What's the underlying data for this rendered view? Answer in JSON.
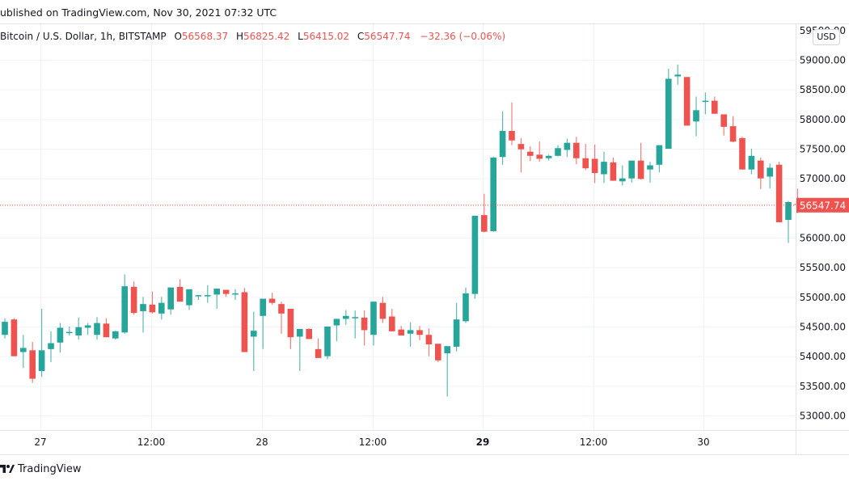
{
  "header": {
    "published": "ublished on TradingView.com, Nov 30, 2021 07:32 UTC"
  },
  "legend": {
    "symbol": "Bitcoin / U.S. Dollar, 1h, BITSTAMP",
    "open_label": "O",
    "open": "56568.37",
    "high_label": "H",
    "high": "56825.42",
    "low_label": "L",
    "low": "56415.02",
    "close_label": "C",
    "close": "56547.74",
    "change": "−32.36 (−0.06%)"
  },
  "price_axis": {
    "currency": "USD",
    "last_price_label": "56547.74",
    "ticks": [
      "59500.00",
      "59000.00",
      "58500.00",
      "58000.00",
      "57500.00",
      "57000.00",
      "56500.00",
      "56000.00",
      "55500.00",
      "55000.00",
      "54500.00",
      "54000.00",
      "53500.00",
      "53000.00"
    ]
  },
  "footer": {
    "brand": "TradingView"
  },
  "colors": {
    "up": "#26a69a",
    "down": "#ef5350",
    "grid": "#f0f3fa",
    "axis_text": "#131722",
    "last_price": "#ef5350"
  },
  "chart_data": {
    "type": "candlestick",
    "title": "Bitcoin / U.S. Dollar, 1h, BITSTAMP",
    "xlabel": "",
    "ylabel": "USD",
    "ylim": [
      52750,
      59550
    ],
    "y_ticks": [
      53000,
      53500,
      54000,
      54500,
      55000,
      55500,
      56000,
      56500,
      57000,
      57500,
      58000,
      58500,
      59000,
      59500
    ],
    "x_ticks": [
      {
        "label": "27",
        "x": 50,
        "bold": false
      },
      {
        "label": "12:00",
        "x": 187,
        "bold": false
      },
      {
        "label": "28",
        "x": 324,
        "bold": false
      },
      {
        "label": "12:00",
        "x": 461,
        "bold": false
      },
      {
        "label": "29",
        "x": 597,
        "bold": true
      },
      {
        "label": "12:00",
        "x": 734,
        "bold": false
      },
      {
        "label": "30",
        "x": 870,
        "bold": false
      }
    ],
    "grid": true,
    "last_price": 56547.74,
    "candle_spacing_px": 11.4,
    "first_candle_x": 6,
    "candles_ohlc": [
      [
        54360,
        54640,
        54300,
        54580
      ],
      [
        54620,
        54640,
        54000,
        54000
      ],
      [
        54070,
        54360,
        53800,
        54140
      ],
      [
        54100,
        54240,
        53550,
        53620
      ],
      [
        53750,
        54800,
        53650,
        54100
      ],
      [
        54120,
        54420,
        53900,
        54220
      ],
      [
        54230,
        54560,
        54060,
        54480
      ],
      [
        54400,
        54500,
        54350,
        54410
      ],
      [
        54350,
        54650,
        54280,
        54490
      ],
      [
        54480,
        54560,
        54360,
        54520
      ],
      [
        54360,
        54660,
        54280,
        54560
      ],
      [
        54550,
        54640,
        54320,
        54320
      ],
      [
        54300,
        54430,
        54280,
        54420
      ],
      [
        54400,
        55380,
        54380,
        55180
      ],
      [
        55170,
        55260,
        54700,
        54730
      ],
      [
        54760,
        55000,
        54400,
        54880
      ],
      [
        54870,
        55090,
        54720,
        54740
      ],
      [
        54720,
        55000,
        54620,
        54900
      ],
      [
        54790,
        55150,
        54700,
        55160
      ],
      [
        55170,
        55300,
        54940,
        54920
      ],
      [
        54860,
        55100,
        54780,
        55130
      ],
      [
        55020,
        55000,
        54950,
        55030
      ],
      [
        55020,
        55200,
        54900,
        55030
      ],
      [
        55040,
        55130,
        54800,
        55140
      ],
      [
        55120,
        55100,
        55000,
        55050
      ],
      [
        55050,
        55130,
        54950,
        55060
      ],
      [
        55080,
        55150,
        54600,
        54070
      ],
      [
        54330,
        54750,
        53750,
        54430
      ],
      [
        54680,
        54900,
        54120,
        54970
      ],
      [
        54970,
        55070,
        54870,
        54900
      ],
      [
        54880,
        54920,
        54380,
        54720
      ],
      [
        54800,
        54800,
        54120,
        54320
      ],
      [
        54330,
        54460,
        53750,
        54460
      ],
      [
        54460,
        54470,
        54300,
        54290
      ],
      [
        54120,
        54300,
        54010,
        53970
      ],
      [
        54000,
        54480,
        53950,
        54500
      ],
      [
        54520,
        54620,
        54250,
        54630
      ],
      [
        54630,
        54780,
        54530,
        54680
      ],
      [
        54660,
        54770,
        54300,
        54660
      ],
      [
        54650,
        54770,
        54180,
        54440
      ],
      [
        54360,
        54830,
        54180,
        54920
      ],
      [
        54900,
        55000,
        54560,
        54630
      ],
      [
        54670,
        54800,
        54420,
        54420
      ],
      [
        54450,
        54510,
        54350,
        54350
      ],
      [
        54380,
        54570,
        54160,
        54440
      ],
      [
        54440,
        54510,
        54270,
        54360
      ],
      [
        54360,
        54470,
        54000,
        54200
      ],
      [
        54210,
        54100,
        53900,
        53930
      ],
      [
        54050,
        54150,
        53320,
        54170
      ],
      [
        54160,
        54900,
        54080,
        54620
      ],
      [
        54590,
        55160,
        54560,
        55060
      ],
      [
        55050,
        55400,
        54970,
        56370
      ],
      [
        56380,
        56740,
        56090,
        56100
      ],
      [
        56110,
        57370,
        56100,
        57350
      ],
      [
        57360,
        58130,
        57230,
        57800
      ],
      [
        57800,
        58280,
        57560,
        57640
      ],
      [
        57580,
        57680,
        57100,
        57490
      ],
      [
        57450,
        57540,
        57290,
        57380
      ],
      [
        57400,
        57620,
        57280,
        57330
      ],
      [
        57340,
        57400,
        57300,
        57380
      ],
      [
        57380,
        57560,
        57370,
        57510
      ],
      [
        57480,
        57670,
        57360,
        57600
      ],
      [
        57600,
        57700,
        57240,
        57340
      ],
      [
        57340,
        57580,
        57140,
        57170
      ],
      [
        57330,
        57570,
        56920,
        57090
      ],
      [
        57070,
        57450,
        56920,
        57280
      ],
      [
        57270,
        57350,
        56960,
        56960
      ],
      [
        56950,
        57220,
        56880,
        57000
      ],
      [
        57000,
        57240,
        56930,
        57300
      ],
      [
        57300,
        57600,
        56980,
        56990
      ],
      [
        57150,
        57280,
        56930,
        57220
      ],
      [
        57230,
        57500,
        57100,
        57560
      ],
      [
        57500,
        58850,
        57550,
        58680
      ],
      [
        58720,
        58920,
        58580,
        58750
      ],
      [
        58710,
        58710,
        57910,
        57890
      ],
      [
        57960,
        58380,
        57710,
        58150
      ],
      [
        58300,
        58450,
        58080,
        58310
      ],
      [
        58310,
        58380,
        58100,
        58090
      ],
      [
        58080,
        58080,
        57720,
        57870
      ],
      [
        57880,
        58050,
        57610,
        57620
      ],
      [
        57680,
        57700,
        57250,
        57150
      ],
      [
        57150,
        57500,
        57070,
        57380
      ],
      [
        57300,
        57350,
        56820,
        57000
      ],
      [
        57030,
        57250,
        56830,
        57180
      ],
      [
        57230,
        57280,
        56260,
        56260
      ],
      [
        56300,
        56620,
        55910,
        56600
      ],
      [
        56568.37,
        56825.42,
        56415.02,
        56547.74
      ]
    ]
  }
}
